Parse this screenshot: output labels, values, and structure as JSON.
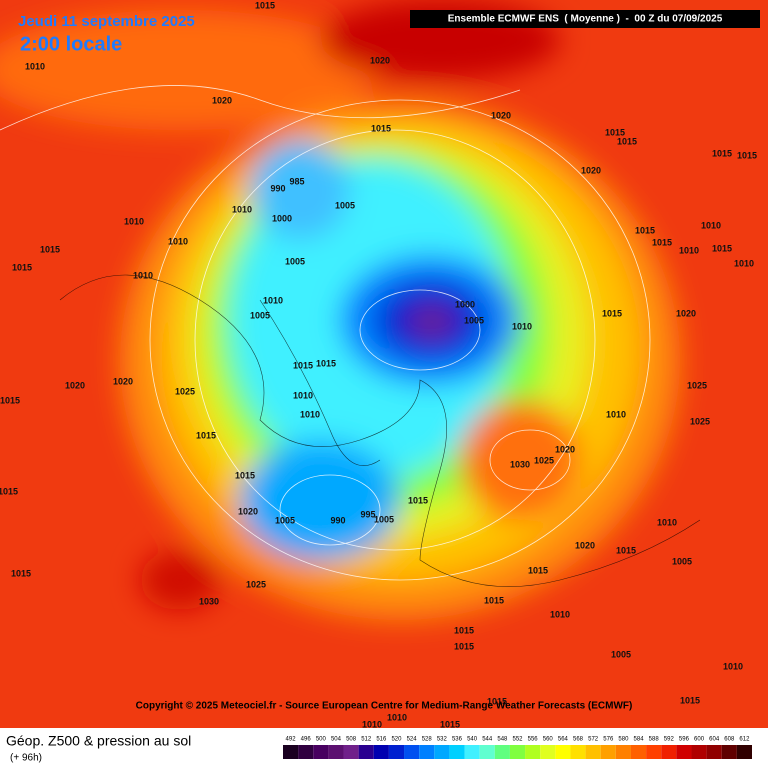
{
  "header": {
    "date": "Jeudi 11 septembre 2025",
    "time": "2:00 locale",
    "run": "Ensemble ECMWF ENS  ( Moyenne )  -  00 Z du 07/09/2025"
  },
  "map": {
    "isobar_labels": [
      1015,
      1010,
      1020,
      1020,
      1015,
      1020,
      1015,
      1015,
      1015,
      1015,
      1020,
      990,
      985,
      1010,
      1005,
      1000,
      1010,
      1010,
      1015,
      1015,
      1005,
      1015,
      1015,
      1010,
      1010,
      1015,
      1010,
      1010,
      1010,
      1005,
      1000,
      1005,
      1010,
      1015,
      1020,
      1015,
      1015,
      1010,
      1010,
      1020,
      1020,
      1025,
      1015,
      1015,
      1015,
      1005,
      990,
      995,
      1005,
      1015,
      1030,
      1025,
      1020,
      1010,
      1020,
      1015,
      1015,
      1025,
      1030,
      1015,
      1015,
      1010,
      1015,
      1015,
      1005,
      1020,
      1015,
      1010,
      1005,
      1010,
      1015,
      1010,
      1010,
      1015,
      1015,
      1025,
      1025
    ],
    "copyright": "Copyright © 2025 Meteociel.fr - Source European Centre for Medium-Range Weather Forecasts (ECMWF)"
  },
  "footer": {
    "title": "Géop. Z500 & pression au sol",
    "lead": "(+ 96h)"
  },
  "legend": {
    "values": [
      492,
      496,
      500,
      504,
      508,
      512,
      516,
      520,
      524,
      528,
      532,
      536,
      540,
      544,
      548,
      552,
      556,
      560,
      564,
      568,
      572,
      576,
      580,
      584,
      588,
      592,
      596,
      600,
      604,
      608,
      612
    ],
    "colors": [
      "#1a0020",
      "#300040",
      "#480060",
      "#5c1070",
      "#70208a",
      "#2a0090",
      "#0000b0",
      "#0020d0",
      "#0050f0",
      "#0080ff",
      "#00a8ff",
      "#00d0ff",
      "#40f0ff",
      "#60ffd0",
      "#60ff80",
      "#80ff40",
      "#b0ff20",
      "#e0ff20",
      "#ffff00",
      "#ffe000",
      "#ffc000",
      "#ffa000",
      "#ff8000",
      "#ff6000",
      "#ff4000",
      "#f02000",
      "#d00000",
      "#b00000",
      "#900000",
      "#600000",
      "#300000"
    ]
  }
}
